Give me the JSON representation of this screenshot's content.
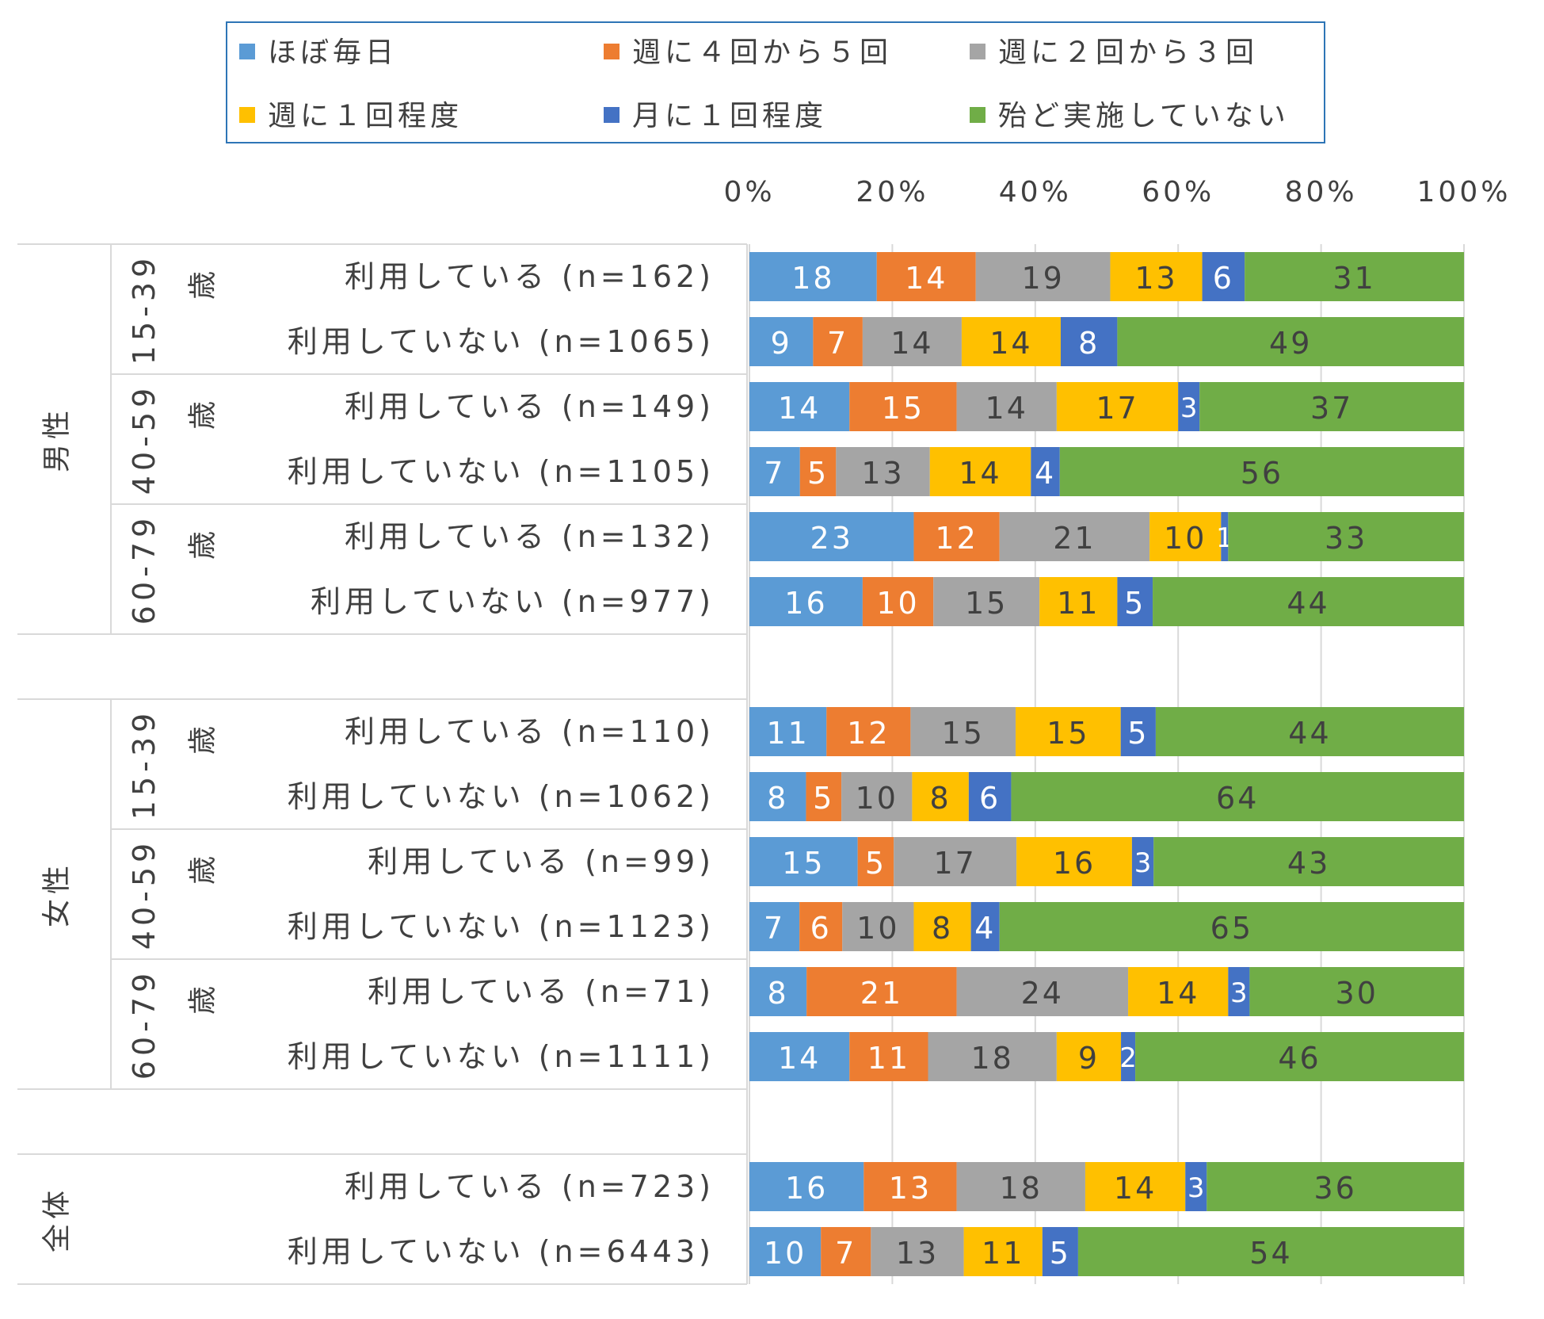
{
  "colors": {
    "ほぼ毎日": "#5b9bd5",
    "週に４回から５回": "#ed7d31",
    "週に２回から３回": "#a5a5a5",
    "週に１回程度": "#ffc000",
    "月に１回程度": "#4472c4",
    "殆ど実施していない": "#70ad47",
    "legend_border": "#2e75b6",
    "gridline": "#d9d9d9",
    "text": "#404040"
  },
  "chart_data": {
    "type": "bar",
    "orientation": "horizontal",
    "stacked": true,
    "percent_stacked": true,
    "xlim": [
      0,
      100
    ],
    "x_ticks": [
      "0%",
      "20%",
      "40%",
      "60%",
      "80%",
      "100%"
    ],
    "grid": true,
    "legend_position": "top",
    "series_names": [
      "ほぼ毎日",
      "週に４回から５回",
      "週に２回から３回",
      "週に１回程度",
      "月に１回程度",
      "殆ど実施していない"
    ],
    "groups": [
      {
        "name": "男性",
        "subgroups": [
          {
            "age": "15-39",
            "unit": "歳",
            "rows": [
              {
                "label": "利用している (n=162)",
                "values": [
                  18,
                  14,
                  19,
                  13,
                  6,
                  31
                ]
              },
              {
                "label": "利用していない (n=1065)",
                "values": [
                  9,
                  7,
                  14,
                  14,
                  8,
                  49
                ]
              }
            ]
          },
          {
            "age": "40-59",
            "unit": "歳",
            "rows": [
              {
                "label": "利用している (n=149)",
                "values": [
                  14,
                  15,
                  14,
                  17,
                  3,
                  37
                ]
              },
              {
                "label": "利用していない (n=1105)",
                "values": [
                  7,
                  5,
                  13,
                  14,
                  4,
                  56
                ]
              }
            ]
          },
          {
            "age": "60-79",
            "unit": "歳",
            "rows": [
              {
                "label": "利用している (n=132)",
                "values": [
                  23,
                  12,
                  21,
                  10,
                  1,
                  33
                ]
              },
              {
                "label": "利用していない (n=977)",
                "values": [
                  16,
                  10,
                  15,
                  11,
                  5,
                  44
                ]
              }
            ]
          }
        ]
      },
      {
        "name": "女性",
        "subgroups": [
          {
            "age": "15-39",
            "unit": "歳",
            "rows": [
              {
                "label": "利用している (n=110)",
                "values": [
                  11,
                  12,
                  15,
                  15,
                  5,
                  44
                ]
              },
              {
                "label": "利用していない (n=1062)",
                "values": [
                  8,
                  5,
                  10,
                  8,
                  6,
                  64
                ]
              }
            ]
          },
          {
            "age": "40-59",
            "unit": "歳",
            "rows": [
              {
                "label": "利用している (n=99)",
                "values": [
                  15,
                  5,
                  17,
                  16,
                  3,
                  43
                ]
              },
              {
                "label": "利用していない (n=1123)",
                "values": [
                  7,
                  6,
                  10,
                  8,
                  4,
                  65
                ]
              }
            ]
          },
          {
            "age": "60-79",
            "unit": "歳",
            "rows": [
              {
                "label": "利用している (n=71)",
                "values": [
                  8,
                  21,
                  24,
                  14,
                  3,
                  30
                ]
              },
              {
                "label": "利用していない (n=1111)",
                "values": [
                  14,
                  11,
                  18,
                  9,
                  2,
                  46
                ]
              }
            ]
          }
        ]
      },
      {
        "name": "全体",
        "subgroups": [
          {
            "age": "",
            "unit": "",
            "rows": [
              {
                "label": "利用している (n=723)",
                "values": [
                  16,
                  13,
                  18,
                  14,
                  3,
                  36
                ]
              },
              {
                "label": "利用していない (n=6443)",
                "values": [
                  10,
                  7,
                  13,
                  11,
                  5,
                  54
                ]
              }
            ]
          }
        ]
      }
    ]
  }
}
